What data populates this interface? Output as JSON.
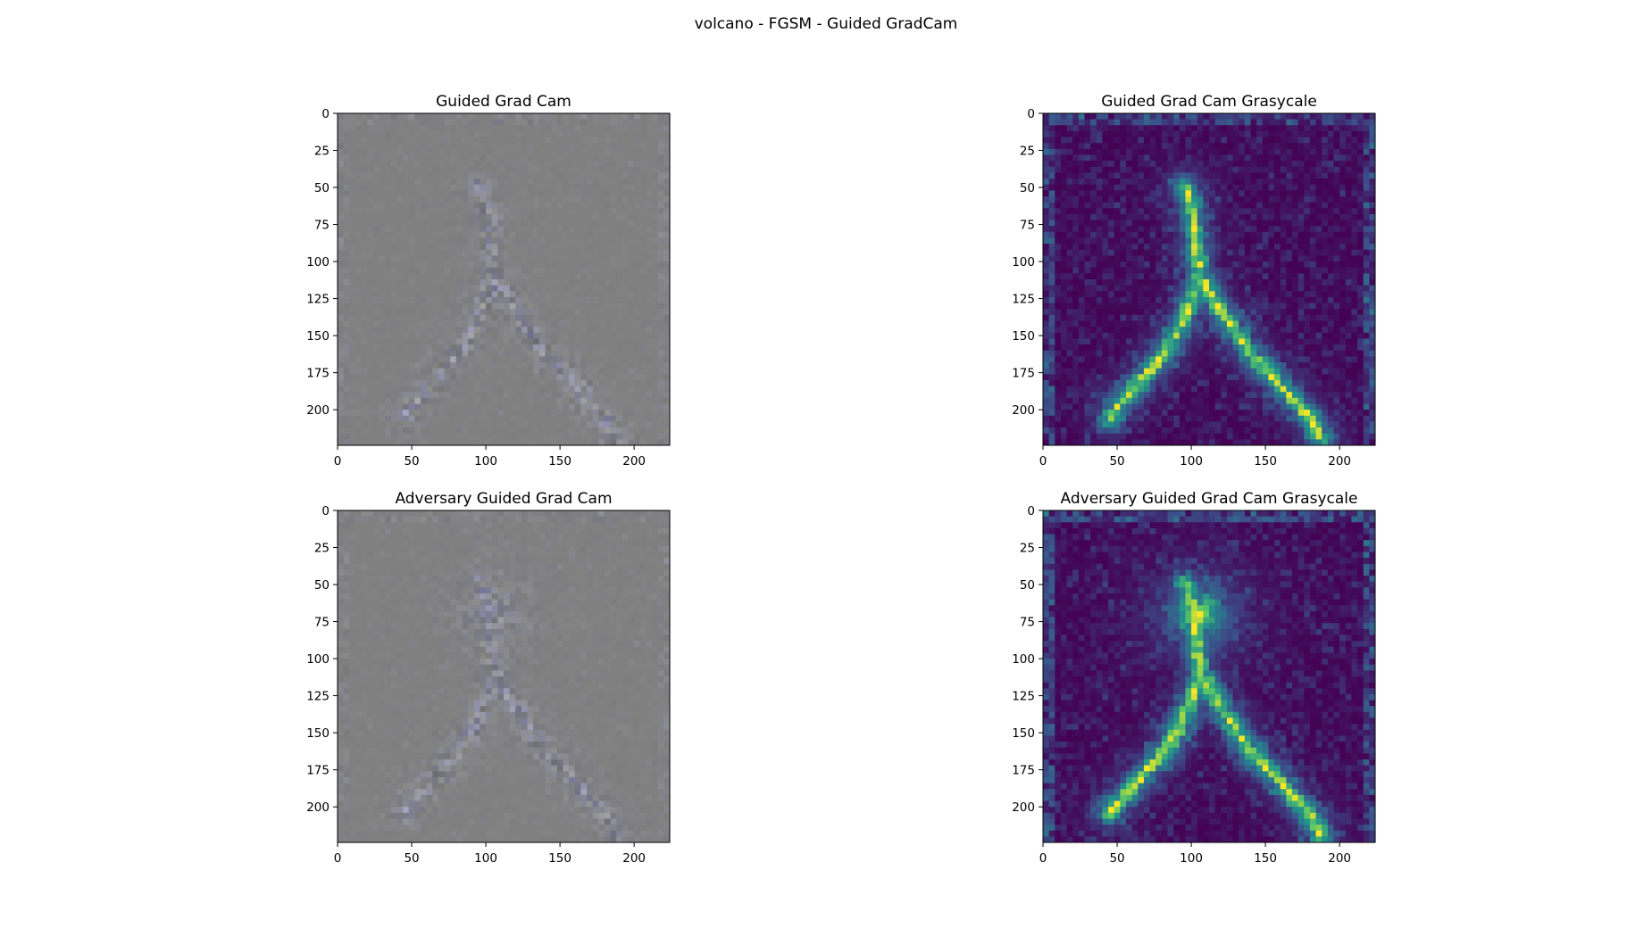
{
  "figure": {
    "suptitle": "volcano - FGSM - Guided GradCam"
  },
  "chart_data": [
    {
      "type": "heatmap",
      "title": "Guided Grad Cam",
      "style": "rgb-gray",
      "xlim": [
        0,
        224
      ],
      "ylim": [
        224,
        0
      ],
      "xticks": [
        0,
        50,
        100,
        150,
        200
      ],
      "yticks": [
        0,
        25,
        50,
        75,
        100,
        125,
        150,
        175,
        200
      ],
      "grid": false
    },
    {
      "type": "heatmap",
      "title": "Guided Grad Cam Grasycale",
      "style": "viridis",
      "xlim": [
        0,
        224
      ],
      "ylim": [
        224,
        0
      ],
      "xticks": [
        0,
        50,
        100,
        150,
        200
      ],
      "yticks": [
        0,
        25,
        50,
        75,
        100,
        125,
        150,
        175,
        200
      ],
      "grid": false
    },
    {
      "type": "heatmap",
      "title": "Adversary Guided Grad Cam",
      "style": "rgb-gray",
      "xlim": [
        0,
        224
      ],
      "ylim": [
        224,
        0
      ],
      "xticks": [
        0,
        50,
        100,
        150,
        200
      ],
      "yticks": [
        0,
        25,
        50,
        75,
        100,
        125,
        150,
        175,
        200
      ],
      "grid": false
    },
    {
      "type": "heatmap",
      "title": "Adversary Guided Grad Cam Grasycale",
      "style": "viridis",
      "xlim": [
        0,
        224
      ],
      "ylim": [
        224,
        0
      ],
      "xticks": [
        0,
        50,
        100,
        150,
        200
      ],
      "yticks": [
        0,
        25,
        50,
        75,
        100,
        125,
        150,
        175,
        200
      ],
      "grid": false
    }
  ]
}
